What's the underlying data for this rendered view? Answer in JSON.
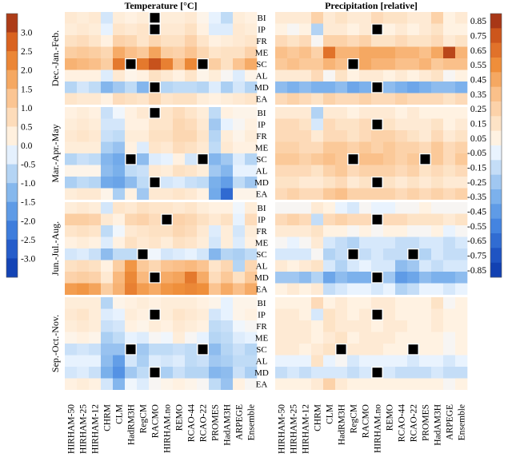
{
  "chart_data": {
    "type": "heatmap",
    "panels": [
      {
        "title": "Temperature [°C]",
        "vmin": -3.3,
        "vmax": 3.3
      },
      {
        "title": "Precipitation [relative]",
        "vmin": -0.9,
        "vmax": 0.9
      }
    ],
    "models": [
      "HIRHAM-50",
      "HIRHAM-25",
      "HIRHAM-12",
      "CHRM",
      "CLM",
      "HadRM3H",
      "RegCM",
      "RACMO",
      "HIRHAM.no",
      "REMO",
      "RCAO-44",
      "RCAO-22",
      "PROMES",
      "HadAM3H",
      "ARPEGE",
      "Ensemble"
    ],
    "regions": [
      "BI",
      "IP",
      "FR",
      "ME",
      "SC",
      "AL",
      "MD",
      "EA"
    ],
    "seasons": [
      "Dec.-Jan.-Feb.",
      "Mar.-Apr.-May",
      "Jun.-Jul.-Aug.",
      "Sep.-Oct.-Nov."
    ],
    "missing_value": "not available (black cell)",
    "temperature_colorbar": {
      "ticks": [
        "3.0",
        "2.5",
        "2.0",
        "1.5",
        "1.0",
        "0.5",
        "0.0",
        "-0.5",
        "-1.0",
        "-1.5",
        "-2.0",
        "-2.5",
        "-3.0"
      ]
    },
    "precipitation_colorbar": {
      "ticks": [
        "0.85",
        "0.75",
        "0.65",
        "0.55",
        "0.45",
        "0.35",
        "0.25",
        "0.15",
        "0.05",
        "-0.05",
        "-0.15",
        "-0.25",
        "-0.35",
        "-0.45",
        "-0.55",
        "-0.65",
        "-0.75",
        "-0.85"
      ]
    },
    "temperature": [
      [
        [
          0.4,
          0.3,
          0.4,
          -0.4,
          0.3,
          0.2,
          0.3,
          null,
          0.3,
          0.3,
          0.4,
          0.1,
          -0.2,
          -0.6,
          0.3,
          0.2
        ],
        [
          0.3,
          0.4,
          0.3,
          -0.2,
          0.5,
          0.4,
          0.5,
          null,
          0.4,
          0.4,
          0.6,
          0.2,
          -0.3,
          -0.3,
          0.4,
          0.3
        ],
        [
          0.6,
          0.7,
          0.5,
          0.2,
          0.9,
          0.8,
          0.5,
          0.8,
          0.6,
          0.6,
          0.9,
          0.5,
          0.2,
          0.3,
          0.4,
          0.5
        ],
        [
          1.0,
          1.1,
          1.0,
          0.8,
          1.6,
          1.3,
          1.1,
          1.7,
          1.0,
          0.9,
          1.2,
          0.8,
          0.5,
          0.6,
          0.6,
          0.9
        ],
        [
          1.5,
          1.4,
          1.3,
          1.0,
          2.3,
          null,
          2.3,
          2.8,
          2.2,
          1.3,
          2.1,
          null,
          1.0,
          0.6,
          1.2,
          1.6
        ],
        [
          0.2,
          0.2,
          0.2,
          -0.3,
          0.4,
          0.1,
          0.2,
          0.6,
          0.4,
          0.2,
          0.5,
          0.1,
          0.3,
          0.0,
          -0.3,
          0.1
        ],
        [
          -0.7,
          -0.4,
          -0.6,
          -1.2,
          -0.9,
          -0.6,
          -1.2,
          null,
          -0.7,
          -0.6,
          -0.6,
          -0.7,
          -0.3,
          -0.8,
          -0.4,
          -0.7
        ],
        [
          0.5,
          0.4,
          0.4,
          0.2,
          0.7,
          0.6,
          0.5,
          0.8,
          0.5,
          0.6,
          0.6,
          0.3,
          0.2,
          0.3,
          0.4,
          0.5
        ]
      ],
      [
        [
          0.2,
          0.3,
          0.2,
          -0.5,
          -0.1,
          0.2,
          0.4,
          null,
          0.5,
          0.7,
          0.5,
          0.3,
          -0.6,
          0.2,
          0.1,
          0.1
        ],
        [
          0.3,
          0.4,
          0.3,
          -0.4,
          -0.4,
          0.2,
          0.2,
          0.5,
          0.5,
          0.8,
          0.7,
          0.4,
          -0.9,
          -0.2,
          0.0,
          0.2
        ],
        [
          0.4,
          0.5,
          0.4,
          -0.5,
          -0.6,
          0.3,
          0.3,
          0.6,
          0.6,
          0.8,
          0.8,
          0.5,
          -0.7,
          0.3,
          0.1,
          0.3
        ],
        [
          0.3,
          0.3,
          0.3,
          -0.8,
          -1.0,
          0.2,
          -0.3,
          0.5,
          0.4,
          0.7,
          0.6,
          0.4,
          -0.6,
          0.4,
          0.2,
          0.2
        ],
        [
          -0.7,
          -0.5,
          -0.6,
          -1.2,
          -1.4,
          null,
          -1.1,
          -0.3,
          -0.2,
          0.2,
          -0.4,
          null,
          -1.2,
          -0.9,
          -0.3,
          -0.7
        ],
        [
          0.1,
          0.1,
          0.1,
          -1.1,
          -1.3,
          -0.6,
          -0.5,
          0.4,
          0.3,
          0.6,
          0.5,
          0.3,
          -0.9,
          -1.2,
          -0.2,
          -0.2
        ],
        [
          -0.8,
          -0.6,
          -0.7,
          -1.4,
          -1.5,
          -1.1,
          -0.6,
          null,
          -0.4,
          -0.3,
          -0.5,
          -0.6,
          -1.3,
          -1.6,
          -0.6,
          -0.9
        ],
        [
          0.3,
          0.4,
          0.4,
          0.1,
          -0.8,
          0.2,
          -0.9,
          0.4,
          0.4,
          0.5,
          0.4,
          0.2,
          -1.4,
          -2.4,
          0.1,
          0.1
        ]
      ],
      [
        [
          0.3,
          0.4,
          0.3,
          -0.4,
          0.5,
          0.4,
          0.6,
          0.5,
          0.5,
          0.4,
          0.5,
          0.3,
          0.2,
          0.2,
          -0.1,
          0.3
        ],
        [
          1.0,
          1.0,
          0.9,
          0.4,
          0.2,
          0.8,
          0.9,
          0.7,
          null,
          0.9,
          0.8,
          0.6,
          0.4,
          0.6,
          -0.2,
          0.7
        ],
        [
          0.5,
          0.6,
          0.5,
          -0.6,
          -0.1,
          0.4,
          0.5,
          0.6,
          0.6,
          0.8,
          0.7,
          0.4,
          -0.3,
          0.3,
          -0.4,
          0.3
        ],
        [
          0.2,
          0.3,
          0.2,
          -0.3,
          0.2,
          0.6,
          0.4,
          0.5,
          0.3,
          0.6,
          0.5,
          0.3,
          -0.4,
          0.3,
          -0.3,
          0.2
        ],
        [
          -0.4,
          -0.3,
          -0.5,
          -1.1,
          -0.6,
          -0.6,
          null,
          -0.1,
          -0.4,
          -0.3,
          -0.2,
          -0.4,
          -1.2,
          -0.7,
          -0.8,
          -0.6
        ],
        [
          0.6,
          0.7,
          0.6,
          0.2,
          1.0,
          1.9,
          1.1,
          0.8,
          1.2,
          1.3,
          1.4,
          1.2,
          0.5,
          0.8,
          -0.7,
          0.8
        ],
        [
          0.9,
          1.0,
          0.9,
          0.4,
          1.4,
          2.1,
          1.4,
          null,
          1.6,
          1.7,
          2.3,
          1.6,
          0.7,
          1.1,
          0.6,
          1.1
        ],
        [
          1.8,
          1.9,
          1.7,
          1.0,
          1.5,
          2.2,
          1.8,
          1.6,
          1.9,
          2.0,
          2.1,
          2.0,
          1.2,
          1.6,
          1.3,
          1.6
        ]
      ],
      [
        [
          0.3,
          0.3,
          0.3,
          -0.7,
          0.1,
          0.2,
          0.3,
          0.2,
          0.3,
          0.3,
          0.3,
          0.2,
          0.1,
          -0.2,
          0.1,
          0.1
        ],
        [
          0.4,
          0.5,
          0.3,
          -0.3,
          -0.2,
          0.3,
          0.2,
          null,
          0.3,
          0.5,
          0.4,
          0.3,
          -0.4,
          -0.2,
          0.1,
          0.2
        ],
        [
          0.3,
          0.4,
          0.3,
          -0.5,
          -0.4,
          0.2,
          0.1,
          0.3,
          0.2,
          0.4,
          0.3,
          0.2,
          -0.6,
          -0.5,
          -0.1,
          0.0
        ],
        [
          0.1,
          0.2,
          0.1,
          -0.8,
          -0.6,
          -0.2,
          -0.3,
          0.0,
          -0.1,
          0.3,
          0.0,
          -0.2,
          -0.7,
          -0.6,
          -0.3,
          -0.2
        ],
        [
          -0.5,
          -0.4,
          -0.5,
          -1.0,
          -1.0,
          null,
          -0.9,
          -0.6,
          -0.6,
          -0.5,
          -0.6,
          null,
          -1.1,
          -0.7,
          -0.5,
          -0.7
        ],
        [
          -0.2,
          -0.2,
          -0.2,
          -1.1,
          -1.6,
          -0.4,
          -0.8,
          -0.3,
          -0.4,
          -0.3,
          -0.6,
          -0.5,
          -0.9,
          -0.8,
          -0.6,
          -0.6
        ],
        [
          -0.4,
          -0.3,
          -0.5,
          -1.3,
          -1.8,
          -0.9,
          -0.6,
          null,
          -0.8,
          -0.5,
          -0.7,
          -0.7,
          -1.2,
          -1.1,
          -0.5,
          -0.8
        ],
        [
          0.2,
          0.3,
          0.2,
          -0.4,
          -1.2,
          -0.1,
          -0.3,
          0.0,
          0.1,
          0.2,
          0.1,
          0.0,
          -0.6,
          -1.0,
          0.2,
          0.0
        ]
      ]
    ],
    "precipitation": [
      [
        [
          0.1,
          0.1,
          0.1,
          0.25,
          0.1,
          0.15,
          0.1,
          0.1,
          0.2,
          0.15,
          0.15,
          0.1,
          0.1,
          0.25,
          0.05,
          0.1
        ],
        [
          0.05,
          0.0,
          0.05,
          -0.2,
          0.1,
          0.1,
          0.05,
          0.1,
          null,
          0.05,
          0.1,
          0.05,
          0.1,
          0.15,
          0.05,
          0.05
        ],
        [
          0.2,
          0.15,
          0.2,
          0.0,
          0.25,
          0.25,
          0.2,
          0.25,
          0.15,
          0.15,
          0.2,
          0.15,
          0.15,
          0.2,
          0.1,
          0.15
        ],
        [
          0.35,
          0.3,
          0.35,
          0.25,
          0.65,
          0.4,
          0.4,
          0.45,
          0.45,
          0.45,
          0.4,
          0.4,
          0.35,
          0.45,
          0.8,
          0.4
        ],
        [
          0.3,
          0.35,
          0.3,
          0.3,
          0.4,
          0.35,
          null,
          0.45,
          0.4,
          0.4,
          0.35,
          0.35,
          0.4,
          0.3,
          0.35,
          0.35
        ],
        [
          0.1,
          0.1,
          0.1,
          0.2,
          0.0,
          0.15,
          0.05,
          0.1,
          0.1,
          0.05,
          0.1,
          0.05,
          0.1,
          0.15,
          0.0,
          0.05
        ],
        [
          -0.3,
          -0.35,
          -0.3,
          -0.35,
          -0.35,
          -0.3,
          -0.4,
          -0.35,
          null,
          -0.3,
          -0.35,
          -0.4,
          -0.35,
          -0.3,
          -0.3,
          -0.35
        ],
        [
          0.2,
          0.25,
          0.2,
          0.15,
          0.25,
          0.2,
          0.2,
          0.25,
          0.2,
          0.2,
          0.25,
          0.2,
          0.2,
          0.2,
          0.15,
          0.2
        ]
      ],
      [
        [
          0.1,
          0.1,
          0.1,
          -0.2,
          0.1,
          0.1,
          0.05,
          0.1,
          0.1,
          0.1,
          0.05,
          0.1,
          0.05,
          0.05,
          0.05,
          0.05
        ],
        [
          0.2,
          0.2,
          0.15,
          -0.1,
          0.2,
          0.15,
          0.15,
          0.2,
          null,
          0.15,
          0.1,
          0.1,
          0.1,
          0.15,
          0.05,
          0.1
        ],
        [
          0.2,
          0.2,
          0.2,
          0.1,
          0.2,
          0.2,
          0.15,
          0.2,
          0.25,
          0.25,
          0.2,
          0.15,
          0.1,
          0.2,
          0.1,
          0.15
        ],
        [
          0.25,
          0.25,
          0.2,
          0.2,
          0.3,
          0.3,
          0.25,
          0.3,
          0.25,
          0.3,
          0.25,
          0.25,
          0.2,
          0.3,
          0.2,
          0.25
        ],
        [
          0.3,
          0.3,
          0.25,
          0.3,
          0.35,
          0.3,
          null,
          0.35,
          0.35,
          0.3,
          0.25,
          0.3,
          null,
          0.3,
          0.2,
          0.3
        ],
        [
          0.2,
          0.2,
          0.2,
          0.15,
          0.25,
          0.3,
          0.2,
          0.25,
          0.25,
          0.25,
          0.2,
          0.25,
          0.15,
          0.2,
          0.15,
          0.2
        ],
        [
          0.15,
          0.15,
          0.1,
          0.1,
          0.15,
          0.2,
          0.1,
          0.15,
          null,
          0.15,
          0.1,
          0.15,
          0.1,
          0.15,
          0.1,
          0.1
        ],
        [
          0.2,
          0.25,
          0.2,
          0.2,
          0.3,
          0.35,
          0.25,
          0.25,
          0.25,
          0.25,
          0.2,
          0.25,
          0.2,
          0.25,
          0.2,
          0.25
        ]
      ],
      [
        [
          0.0,
          0.0,
          0.0,
          0.1,
          0.05,
          -0.05,
          -0.1,
          0.0,
          -0.05,
          -0.05,
          0.0,
          0.0,
          0.05,
          0.0,
          0.0,
          0.0
        ],
        [
          0.2,
          0.25,
          0.2,
          -0.15,
          0.2,
          0.25,
          0.2,
          0.2,
          null,
          0.2,
          0.2,
          0.15,
          0.15,
          0.15,
          0.1,
          0.15
        ],
        [
          0.1,
          0.1,
          0.1,
          0.15,
          0.05,
          0.05,
          0.0,
          0.05,
          0.0,
          0.05,
          0.05,
          0.0,
          0.0,
          0.05,
          -0.05,
          0.0
        ],
        [
          0.0,
          -0.05,
          0.0,
          0.1,
          -0.1,
          -0.15,
          -0.2,
          -0.1,
          -0.1,
          -0.1,
          -0.15,
          -0.15,
          -0.1,
          -0.1,
          -0.15,
          -0.1
        ],
        [
          -0.1,
          -0.1,
          -0.1,
          0.0,
          -0.2,
          -0.15,
          null,
          -0.15,
          -0.1,
          -0.15,
          -0.15,
          null,
          -0.2,
          -0.1,
          -0.15,
          -0.15
        ],
        [
          0.1,
          0.05,
          0.1,
          0.15,
          -0.1,
          -0.2,
          -0.1,
          -0.05,
          -0.1,
          -0.1,
          -0.3,
          -0.25,
          -0.1,
          -0.15,
          -0.1,
          -0.1
        ],
        [
          -0.25,
          -0.25,
          -0.3,
          -0.2,
          -0.4,
          -0.3,
          -0.35,
          -0.35,
          null,
          -0.25,
          -0.45,
          -0.4,
          -0.3,
          -0.35,
          -0.35,
          -0.3
        ],
        [
          0.05,
          0.1,
          0.05,
          0.1,
          -0.15,
          -0.1,
          -0.05,
          -0.05,
          -0.1,
          -0.05,
          -0.2,
          -0.15,
          -0.05,
          -0.05,
          -0.1,
          -0.05
        ]
      ],
      [
        [
          0.05,
          0.05,
          0.05,
          0.2,
          0.05,
          0.1,
          0.05,
          0.05,
          0.1,
          0.1,
          0.05,
          0.05,
          0.05,
          0.15,
          0.0,
          0.05
        ],
        [
          0.1,
          0.1,
          0.05,
          -0.1,
          0.15,
          0.1,
          0.05,
          0.1,
          null,
          0.1,
          0.05,
          0.05,
          0.05,
          0.1,
          0.05,
          0.05
        ],
        [
          0.1,
          0.1,
          0.1,
          0.05,
          0.15,
          0.1,
          0.1,
          0.1,
          0.05,
          0.1,
          0.1,
          0.05,
          0.05,
          0.1,
          0.05,
          0.05
        ],
        [
          0.1,
          0.1,
          0.1,
          0.05,
          0.1,
          0.15,
          0.05,
          0.1,
          0.1,
          0.1,
          0.05,
          0.05,
          0.05,
          0.05,
          0.0,
          0.05
        ],
        [
          0.1,
          0.1,
          0.05,
          0.1,
          0.15,
          null,
          0.1,
          0.1,
          0.1,
          0.05,
          0.05,
          null,
          0.05,
          0.05,
          0.0,
          0.05
        ],
        [
          -0.05,
          -0.05,
          -0.05,
          0.15,
          -0.05,
          0.0,
          -0.1,
          -0.05,
          -0.05,
          -0.05,
          -0.05,
          -0.1,
          -0.05,
          -0.05,
          -0.1,
          -0.05
        ],
        [
          -0.15,
          -0.1,
          -0.15,
          -0.1,
          -0.1,
          -0.1,
          -0.15,
          -0.1,
          null,
          -0.1,
          -0.15,
          -0.15,
          -0.15,
          -0.1,
          -0.15,
          -0.15
        ],
        [
          0.05,
          0.05,
          0.05,
          0.1,
          0.25,
          0.1,
          0.05,
          0.05,
          0.05,
          0.05,
          0.05,
          0.05,
          0.05,
          0.05,
          0.0,
          0.05
        ]
      ]
    ]
  }
}
